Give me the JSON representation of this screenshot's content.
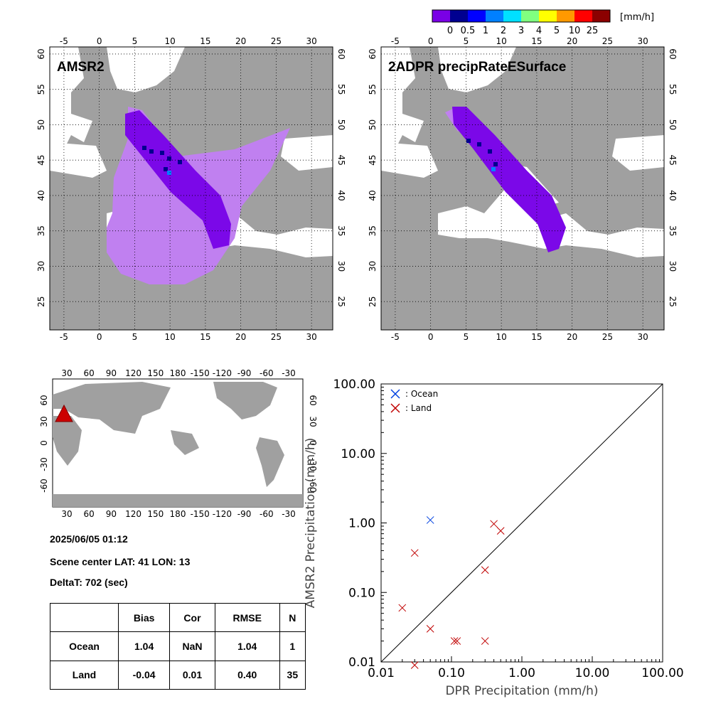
{
  "colorbar": {
    "unit": "[mm/h]",
    "colors": [
      "#7a00e6",
      "#000090",
      "#0000ff",
      "#0080ff",
      "#00e0ff",
      "#80ff80",
      "#ffff00",
      "#ff9900",
      "#ff0000",
      "#8b0000"
    ],
    "ticks": [
      "0",
      "0.5",
      "1",
      "2",
      "3",
      "4",
      "5",
      "10",
      "25"
    ]
  },
  "maps": {
    "left_title": "AMSR2",
    "right_title": "2ADPR precipRateESurface",
    "lon_ticks": [
      "-5",
      "0",
      "5",
      "10",
      "15",
      "20",
      "25",
      "30"
    ],
    "lat_ticks": [
      "25",
      "30",
      "35",
      "40",
      "45",
      "50",
      "55",
      "60"
    ],
    "land_color": "#a0a0a0",
    "ocean_color": "#ffffff",
    "light_swath_color": "#c080f0",
    "dark_swath_color": "#7b08e8"
  },
  "world_map": {
    "top_ticks": [
      "30",
      "60",
      "90",
      "120",
      "150",
      "180",
      "-150",
      "-120",
      "-90",
      "-60",
      "-30"
    ],
    "lat_ticks": [
      "60",
      "30",
      "0",
      "-30",
      "-60"
    ],
    "marker_color": "#cc0000"
  },
  "info": {
    "datetime": "2025/06/05 01:12",
    "scene_center": "Scene center LAT: 41   LON:  13",
    "delta_t": "DeltaT:  702 (sec)"
  },
  "stats_table": {
    "headers": [
      "",
      "Bias",
      "Cor",
      "RMSE",
      "N"
    ],
    "rows": [
      [
        "Ocean",
        "1.04",
        "NaN",
        "1.04",
        "1"
      ],
      [
        "Land",
        "-0.04",
        "0.01",
        "0.40",
        "35"
      ]
    ]
  },
  "chart_data": {
    "type": "scatter",
    "xlabel": "DPR Precipitation (mm/h)",
    "ylabel": "AMSR2 Precipitation (mm/h)",
    "xscale": "log",
    "yscale": "log",
    "xlim": [
      0.01,
      100
    ],
    "ylim": [
      0.01,
      100
    ],
    "tick_labels": [
      "0.01",
      "0.10",
      "1.00",
      "10.00",
      "100.00"
    ],
    "tick_values": [
      0.01,
      0.1,
      1,
      10,
      100
    ],
    "legend_placement": "top-left",
    "series": [
      {
        "name": ": Ocean",
        "color": "#0040e0",
        "points": [
          [
            0.05,
            1.1
          ]
        ]
      },
      {
        "name": ": Land",
        "color": "#c00000",
        "points": [
          [
            0.02,
            0.06
          ],
          [
            0.03,
            0.37
          ],
          [
            0.05,
            0.03
          ],
          [
            0.03,
            0.009
          ],
          [
            0.11,
            0.02
          ],
          [
            0.12,
            0.02
          ],
          [
            0.3,
            0.02
          ],
          [
            0.3,
            0.21
          ],
          [
            0.4,
            0.97
          ],
          [
            0.5,
            0.77
          ]
        ]
      }
    ]
  }
}
